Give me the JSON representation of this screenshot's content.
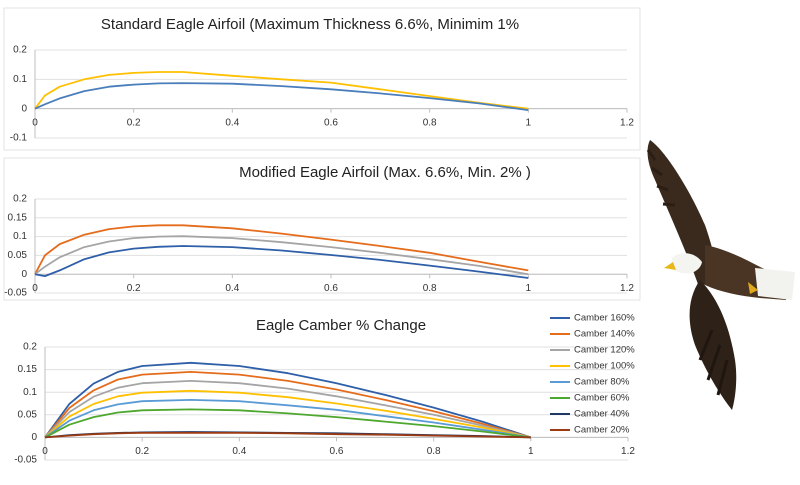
{
  "chart_data": [
    {
      "type": "line",
      "title": "Standard Eagle Airfoil  (Maximum Thickness 6.6%, Minimim 1%",
      "x": [
        0,
        0.02,
        0.05,
        0.1,
        0.15,
        0.2,
        0.25,
        0.3,
        0.4,
        0.5,
        0.6,
        0.7,
        0.8,
        0.9,
        1
      ],
      "series": [
        {
          "color": "#ffc000",
          "values": [
            0,
            0.045,
            0.075,
            0.1,
            0.115,
            0.122,
            0.125,
            0.125,
            0.112,
            0.1,
            0.089,
            0.066,
            0.043,
            0.02,
            0
          ]
        },
        {
          "color": "#4a7ebb",
          "values": [
            0,
            0.015,
            0.035,
            0.06,
            0.075,
            0.082,
            0.086,
            0.087,
            0.085,
            0.077,
            0.066,
            0.052,
            0.036,
            0.018,
            -0.005
          ]
        }
      ],
      "xlim": [
        0,
        1.2
      ],
      "xticks": [
        0,
        0.2,
        0.4,
        0.6,
        0.8,
        1,
        1.2
      ],
      "ylim": [
        -0.1,
        0.2
      ],
      "yticks": [
        -0.1,
        0,
        0.1,
        0.2
      ],
      "grid": true
    },
    {
      "type": "line",
      "title": "Modified Eagle Airfoil (Max. 6.6%, Min. 2% )",
      "x": [
        0,
        0.02,
        0.05,
        0.1,
        0.15,
        0.2,
        0.25,
        0.3,
        0.4,
        0.5,
        0.6,
        0.7,
        0.8,
        0.9,
        1
      ],
      "series": [
        {
          "color": "#e46c1b",
          "values": [
            0,
            0.05,
            0.08,
            0.105,
            0.12,
            0.127,
            0.13,
            0.13,
            0.122,
            0.108,
            0.092,
            0.075,
            0.057,
            0.033,
            0.01
          ]
        },
        {
          "color": "#a5a5a5",
          "values": [
            0,
            0.02,
            0.045,
            0.072,
            0.087,
            0.096,
            0.1,
            0.101,
            0.096,
            0.085,
            0.072,
            0.057,
            0.04,
            0.022,
            0
          ]
        },
        {
          "color": "#2e5fa8",
          "values": [
            0,
            -0.005,
            0.01,
            0.04,
            0.058,
            0.068,
            0.073,
            0.075,
            0.072,
            0.063,
            0.051,
            0.038,
            0.023,
            0.007,
            -0.01
          ]
        }
      ],
      "xlim": [
        0,
        1.2
      ],
      "xticks": [
        0,
        0.2,
        0.4,
        0.6,
        0.8,
        1,
        1.2
      ],
      "ylim": [
        -0.05,
        0.2
      ],
      "yticks": [
        -0.05,
        0,
        0.05,
        0.1,
        0.15,
        0.2
      ],
      "grid": true
    },
    {
      "type": "line",
      "title": "Eagle Camber % Change",
      "x": [
        0,
        0.05,
        0.1,
        0.15,
        0.2,
        0.3,
        0.4,
        0.5,
        0.6,
        0.7,
        0.8,
        0.9,
        1
      ],
      "series": [
        {
          "name": "Camber 160%",
          "color": "#2e5fa8",
          "values": [
            0,
            0.074,
            0.119,
            0.145,
            0.158,
            0.165,
            0.158,
            0.142,
            0.12,
            0.094,
            0.066,
            0.035,
            0
          ]
        },
        {
          "name": "Camber 140%",
          "color": "#e46c1b",
          "values": [
            0,
            0.065,
            0.104,
            0.128,
            0.139,
            0.145,
            0.139,
            0.125,
            0.106,
            0.083,
            0.058,
            0.03,
            0
          ]
        },
        {
          "name": "Camber 120%",
          "color": "#a5a5a5",
          "values": [
            0,
            0.056,
            0.09,
            0.11,
            0.12,
            0.125,
            0.12,
            0.108,
            0.091,
            0.071,
            0.05,
            0.026,
            0
          ]
        },
        {
          "name": "Camber 100%",
          "color": "#ffc000",
          "values": [
            0,
            0.046,
            0.074,
            0.091,
            0.099,
            0.103,
            0.099,
            0.089,
            0.075,
            0.059,
            0.041,
            0.022,
            0
          ]
        },
        {
          "name": "Camber 80%",
          "color": "#5b9bd5",
          "values": [
            0,
            0.037,
            0.06,
            0.073,
            0.08,
            0.083,
            0.08,
            0.071,
            0.061,
            0.047,
            0.033,
            0.017,
            0
          ]
        },
        {
          "name": "Camber 60%",
          "color": "#4ea72e",
          "values": [
            0,
            0.028,
            0.045,
            0.055,
            0.06,
            0.062,
            0.06,
            0.053,
            0.045,
            0.035,
            0.025,
            0.013,
            0
          ]
        },
        {
          "name": "Camber 40%",
          "color": "#1f3864",
          "values": [
            0,
            0.005,
            0.008,
            0.01,
            0.011,
            0.012,
            0.011,
            0.01,
            0.009,
            0.007,
            0.005,
            0.003,
            0
          ]
        },
        {
          "name": "Camber 20%",
          "color": "#9c3a12",
          "values": [
            0,
            0.004,
            0.007,
            0.009,
            0.01,
            0.01,
            0.01,
            0.009,
            0.007,
            0.006,
            0.004,
            0.002,
            0
          ]
        }
      ],
      "xlim": [
        0,
        1.2
      ],
      "xticks": [
        0,
        0.2,
        0.4,
        0.6,
        0.8,
        1,
        1.2
      ],
      "ylim": [
        -0.05,
        0.2
      ],
      "yticks": [
        -0.05,
        0,
        0.05,
        0.1,
        0.15,
        0.2
      ],
      "grid": true,
      "legend": "right"
    }
  ]
}
